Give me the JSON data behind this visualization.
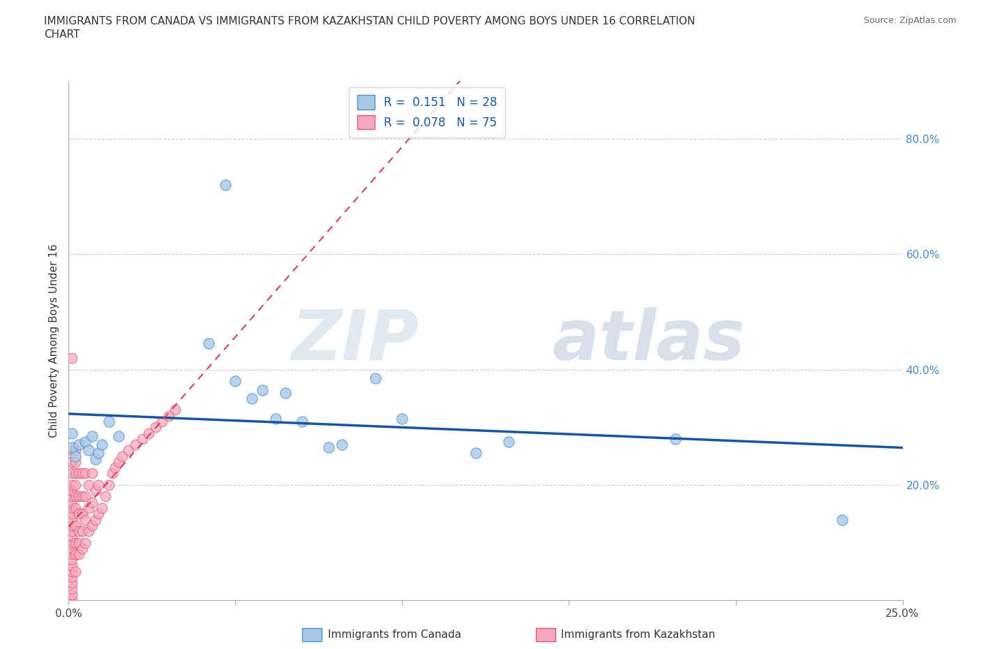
{
  "title_line1": "IMMIGRANTS FROM CANADA VS IMMIGRANTS FROM KAZAKHSTAN CHILD POVERTY AMONG BOYS UNDER 16 CORRELATION",
  "title_line2": "CHART",
  "source": "Source: ZipAtlas.com",
  "ylabel": "Child Poverty Among Boys Under 16",
  "right_yticks": [
    "80.0%",
    "60.0%",
    "40.0%",
    "20.0%"
  ],
  "right_ytick_vals": [
    0.8,
    0.6,
    0.4,
    0.2
  ],
  "legend_canada_R": "0.151",
  "legend_canada_N": "28",
  "legend_kaz_R": "0.078",
  "legend_kaz_N": "75",
  "watermark_zip": "ZIP",
  "watermark_atlas": "atlas",
  "canada_color": "#a8c8e8",
  "kaz_color": "#f5a8bc",
  "canada_edge_color": "#5090c8",
  "kaz_edge_color": "#e05878",
  "canada_line_color": "#1a55a0",
  "kaz_line_color": "#d04060",
  "canada_scatter_x": [
    0.001,
    0.001,
    0.002,
    0.003,
    0.005,
    0.006,
    0.007,
    0.008,
    0.009,
    0.01,
    0.012,
    0.015,
    0.042,
    0.047,
    0.05,
    0.055,
    0.058,
    0.062,
    0.065,
    0.07,
    0.078,
    0.082,
    0.092,
    0.1,
    0.122,
    0.132,
    0.182,
    0.232
  ],
  "canada_scatter_y": [
    0.265,
    0.29,
    0.25,
    0.27,
    0.275,
    0.26,
    0.285,
    0.245,
    0.255,
    0.27,
    0.31,
    0.285,
    0.445,
    0.72,
    0.38,
    0.35,
    0.365,
    0.315,
    0.36,
    0.31,
    0.265,
    0.27,
    0.385,
    0.315,
    0.255,
    0.275,
    0.28,
    0.14
  ],
  "kaz_scatter_x": [
    0.001,
    0.001,
    0.001,
    0.001,
    0.001,
    0.001,
    0.001,
    0.001,
    0.001,
    0.001,
    0.001,
    0.001,
    0.001,
    0.001,
    0.001,
    0.001,
    0.001,
    0.001,
    0.001,
    0.001,
    0.001,
    0.001,
    0.001,
    0.001,
    0.001,
    0.002,
    0.002,
    0.002,
    0.002,
    0.002,
    0.002,
    0.002,
    0.002,
    0.002,
    0.002,
    0.003,
    0.003,
    0.003,
    0.003,
    0.003,
    0.003,
    0.004,
    0.004,
    0.004,
    0.004,
    0.004,
    0.005,
    0.005,
    0.005,
    0.005,
    0.006,
    0.006,
    0.006,
    0.007,
    0.007,
    0.007,
    0.008,
    0.008,
    0.009,
    0.009,
    0.01,
    0.011,
    0.012,
    0.013,
    0.014,
    0.015,
    0.016,
    0.018,
    0.02,
    0.022,
    0.024,
    0.026,
    0.028,
    0.03,
    0.032
  ],
  "kaz_scatter_y": [
    0.0,
    0.01,
    0.02,
    0.03,
    0.04,
    0.05,
    0.06,
    0.07,
    0.08,
    0.09,
    0.1,
    0.11,
    0.12,
    0.13,
    0.14,
    0.15,
    0.16,
    0.17,
    0.18,
    0.19,
    0.2,
    0.22,
    0.24,
    0.26,
    0.42,
    0.05,
    0.08,
    0.1,
    0.13,
    0.16,
    0.18,
    0.2,
    0.22,
    0.24,
    0.26,
    0.08,
    0.1,
    0.12,
    0.15,
    0.18,
    0.22,
    0.09,
    0.12,
    0.15,
    0.18,
    0.22,
    0.1,
    0.14,
    0.18,
    0.22,
    0.12,
    0.16,
    0.2,
    0.13,
    0.17,
    0.22,
    0.14,
    0.19,
    0.15,
    0.2,
    0.16,
    0.18,
    0.2,
    0.22,
    0.23,
    0.24,
    0.25,
    0.26,
    0.27,
    0.28,
    0.29,
    0.3,
    0.31,
    0.32,
    0.33
  ],
  "xlim": [
    0.0,
    0.25
  ],
  "ylim": [
    0.0,
    0.9
  ]
}
